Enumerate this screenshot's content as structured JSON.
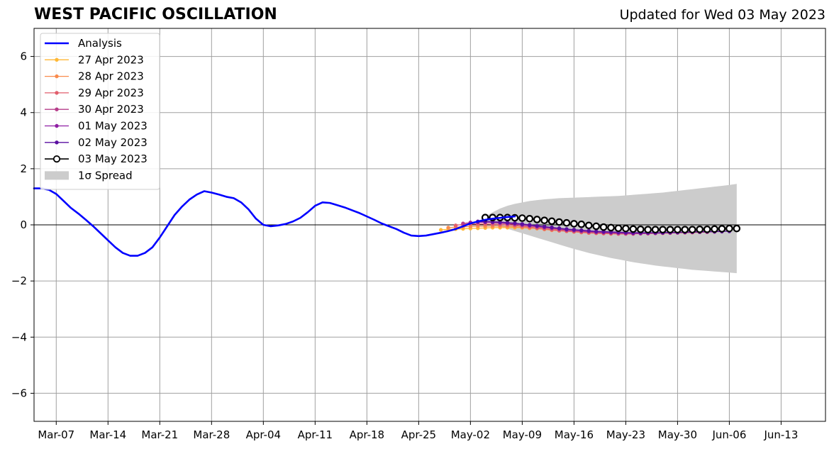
{
  "header": {
    "title": "WEST PACIFIC OSCILLATION",
    "updated": "Updated for Wed 03 May 2023"
  },
  "colors": {
    "analysis": "#0000ff",
    "spread": "#cccccc",
    "grid": "#a0a0a0",
    "forecasts": [
      "#ffb836",
      "#f98b4d",
      "#e15e6c",
      "#b63d8a",
      "#8f1fa3",
      "#5a0fa0",
      "#000000"
    ]
  },
  "chart_data": {
    "type": "line",
    "ylim": [
      -7,
      7
    ],
    "xlim": [
      "2023-03-04",
      "2023-06-19"
    ],
    "yticks": [
      -6,
      -4,
      -2,
      0,
      2,
      4,
      6
    ],
    "ytick_labels": [
      "−6",
      "−4",
      "−2",
      "0",
      "2",
      "4",
      "6"
    ],
    "xticks": [
      "2023-03-07",
      "2023-03-14",
      "2023-03-21",
      "2023-03-28",
      "2023-04-04",
      "2023-04-11",
      "2023-04-18",
      "2023-04-25",
      "2023-05-02",
      "2023-05-09",
      "2023-05-16",
      "2023-05-23",
      "2023-05-30",
      "2023-06-06",
      "2023-06-13"
    ],
    "xtick_labels": [
      "Mar-07",
      "Mar-14",
      "Mar-21",
      "Mar-28",
      "Apr-04",
      "Apr-11",
      "Apr-18",
      "Apr-25",
      "May-02",
      "May-09",
      "May-16",
      "May-23",
      "May-30",
      "Jun-06",
      "Jun-13"
    ],
    "grid": true,
    "legend_position": "top-left",
    "legend": [
      "Analysis",
      "27 Apr 2023",
      "28 Apr 2023",
      "29 Apr 2023",
      "30 Apr 2023",
      "01 May 2023",
      "02 May 2023",
      "03 May 2023",
      "1σ Spread"
    ],
    "analysis": {
      "name": "Analysis",
      "start_date": "2023-03-04",
      "values": [
        1.3,
        1.3,
        1.25,
        1.1,
        0.85,
        0.6,
        0.4,
        0.18,
        -0.05,
        -0.3,
        -0.55,
        -0.8,
        -1.0,
        -1.1,
        -1.1,
        -1.0,
        -0.8,
        -0.45,
        -0.05,
        0.35,
        0.65,
        0.9,
        1.08,
        1.2,
        1.15,
        1.08,
        1.0,
        0.95,
        0.8,
        0.55,
        0.22,
        0.0,
        -0.05,
        -0.02,
        0.03,
        0.12,
        0.25,
        0.45,
        0.68,
        0.8,
        0.78,
        0.7,
        0.62,
        0.52,
        0.42,
        0.3,
        0.18,
        0.05,
        -0.05,
        -0.15,
        -0.28,
        -0.38,
        -0.4,
        -0.38,
        -0.33,
        -0.28,
        -0.22,
        -0.15,
        -0.05,
        0.05,
        0.12,
        0.18,
        0.22,
        0.25,
        0.28,
        0.3
      ]
    },
    "forecasts": [
      {
        "name": "27 Apr 2023",
        "start_date": "2023-04-28",
        "values": [
          -0.18,
          -0.16,
          -0.15,
          -0.14,
          -0.13,
          -0.12,
          -0.11,
          -0.1,
          -0.1,
          -0.1,
          -0.1,
          -0.1,
          -0.12,
          -0.13,
          -0.15,
          -0.17,
          -0.19,
          -0.21,
          -0.23,
          -0.25,
          -0.27,
          -0.28,
          -0.29,
          -0.3,
          -0.31,
          -0.31,
          -0.31,
          -0.31,
          -0.31,
          -0.3,
          -0.3,
          -0.29,
          -0.28,
          -0.28,
          -0.27
        ]
      },
      {
        "name": "28 Apr 2023",
        "start_date": "2023-04-29",
        "values": [
          -0.1,
          -0.08,
          -0.07,
          -0.06,
          -0.05,
          -0.05,
          -0.05,
          -0.05,
          -0.06,
          -0.07,
          -0.09,
          -0.11,
          -0.13,
          -0.16,
          -0.19,
          -0.21,
          -0.23,
          -0.25,
          -0.27,
          -0.29,
          -0.3,
          -0.31,
          -0.32,
          -0.32,
          -0.32,
          -0.32,
          -0.31,
          -0.31,
          -0.3,
          -0.29,
          -0.29,
          -0.28,
          -0.27,
          -0.27,
          -0.26
        ]
      },
      {
        "name": "29 Apr 2023",
        "start_date": "2023-04-30",
        "values": [
          -0.02,
          0.02,
          0.03,
          0.03,
          0.03,
          0.02,
          0.01,
          0.0,
          -0.02,
          -0.05,
          -0.08,
          -0.11,
          -0.14,
          -0.17,
          -0.2,
          -0.22,
          -0.24,
          -0.26,
          -0.28,
          -0.29,
          -0.3,
          -0.31,
          -0.32,
          -0.32,
          -0.32,
          -0.31,
          -0.31,
          -0.3,
          -0.29,
          -0.29,
          -0.28,
          -0.27,
          -0.27,
          -0.26,
          -0.26
        ]
      },
      {
        "name": "30 Apr 2023",
        "start_date": "2023-05-01",
        "values": [
          0.05,
          0.08,
          0.09,
          0.09,
          0.08,
          0.06,
          0.04,
          0.02,
          -0.01,
          -0.04,
          -0.07,
          -0.1,
          -0.13,
          -0.16,
          -0.19,
          -0.21,
          -0.23,
          -0.25,
          -0.27,
          -0.28,
          -0.29,
          -0.3,
          -0.31,
          -0.31,
          -0.31,
          -0.3,
          -0.3,
          -0.29,
          -0.28,
          -0.28,
          -0.27,
          -0.26,
          -0.26,
          -0.25,
          -0.25
        ]
      },
      {
        "name": "01 May 2023",
        "start_date": "2023-05-02",
        "values": [
          0.08,
          0.1,
          0.1,
          0.09,
          0.08,
          0.06,
          0.04,
          0.01,
          -0.02,
          -0.05,
          -0.08,
          -0.11,
          -0.14,
          -0.17,
          -0.19,
          -0.21,
          -0.23,
          -0.25,
          -0.26,
          -0.27,
          -0.28,
          -0.29,
          -0.3,
          -0.3,
          -0.3,
          -0.29,
          -0.29,
          -0.28,
          -0.27,
          -0.27,
          -0.26,
          -0.25,
          -0.25,
          -0.24,
          -0.24
        ]
      },
      {
        "name": "02 May 2023",
        "start_date": "2023-05-03",
        "values": [
          0.12,
          0.12,
          0.11,
          0.1,
          0.08,
          0.06,
          0.03,
          0.0,
          -0.03,
          -0.06,
          -0.09,
          -0.12,
          -0.15,
          -0.17,
          -0.19,
          -0.21,
          -0.23,
          -0.24,
          -0.25,
          -0.26,
          -0.27,
          -0.28,
          -0.28,
          -0.28,
          -0.28,
          -0.28,
          -0.27,
          -0.27,
          -0.26,
          -0.25,
          -0.25,
          -0.24,
          -0.24,
          -0.23,
          -0.23
        ]
      },
      {
        "name": "03 May 2023",
        "start_date": "2023-05-04",
        "values": [
          0.26,
          0.26,
          0.26,
          0.26,
          0.25,
          0.24,
          0.22,
          0.19,
          0.16,
          0.13,
          0.1,
          0.07,
          0.04,
          0.02,
          -0.02,
          -0.05,
          -0.08,
          -0.1,
          -0.12,
          -0.13,
          -0.15,
          -0.16,
          -0.17,
          -0.17,
          -0.17,
          -0.17,
          -0.17,
          -0.17,
          -0.17,
          -0.16,
          -0.16,
          -0.15,
          -0.14,
          -0.13,
          -0.13
        ]
      }
    ],
    "spread": {
      "name": "1σ Spread",
      "start_date": "2023-05-04",
      "upper": [
        0.3,
        0.45,
        0.58,
        0.68,
        0.75,
        0.8,
        0.85,
        0.88,
        0.91,
        0.93,
        0.95,
        0.96,
        0.97,
        0.98,
        0.99,
        1.0,
        1.01,
        1.02,
        1.03,
        1.05,
        1.07,
        1.09,
        1.11,
        1.13,
        1.15,
        1.18,
        1.21,
        1.24,
        1.27,
        1.3,
        1.33,
        1.36,
        1.39,
        1.42,
        1.46
      ],
      "lower": [
        0.15,
        0.05,
        -0.05,
        -0.14,
        -0.22,
        -0.3,
        -0.38,
        -0.46,
        -0.54,
        -0.62,
        -0.7,
        -0.78,
        -0.86,
        -0.93,
        -1.0,
        -1.06,
        -1.12,
        -1.18,
        -1.23,
        -1.28,
        -1.33,
        -1.37,
        -1.41,
        -1.45,
        -1.48,
        -1.51,
        -1.54,
        -1.57,
        -1.6,
        -1.62,
        -1.64,
        -1.66,
        -1.68,
        -1.7,
        -1.72
      ]
    }
  }
}
